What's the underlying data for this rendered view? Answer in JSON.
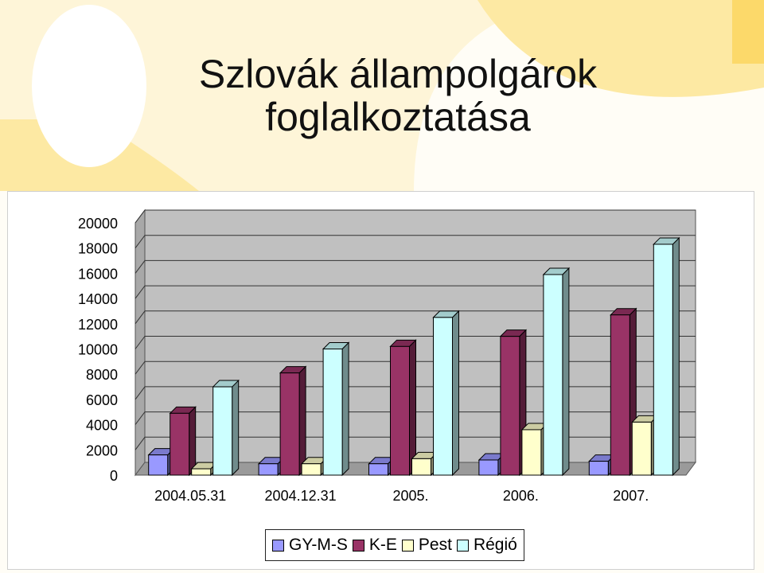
{
  "slide": {
    "title_line1": "Szlovák  állampolgárok",
    "title_line2": "foglalkoztatása",
    "colors": {
      "accent_yellow": "#fde9a3",
      "background": "#ffffff"
    }
  },
  "chart_data": {
    "type": "bar",
    "style": "3d-clustered-column",
    "title": "",
    "xlabel": "",
    "ylabel": "",
    "ylim": [
      0,
      20000
    ],
    "yticks": [
      "20000",
      "18000",
      "16000",
      "14000",
      "12000",
      "10000",
      "8000",
      "6000",
      "4000",
      "2000",
      "0"
    ],
    "categories": [
      "2004.05.31",
      "2004.12.31",
      "2005.",
      "2006.",
      "2007."
    ],
    "series": [
      {
        "name": "GY-M-S",
        "color": "#9999ff",
        "values": [
          1600,
          900,
          900,
          1200,
          1100
        ]
      },
      {
        "name": "K-E",
        "color": "#993366",
        "values": [
          4900,
          8100,
          10200,
          11000,
          12700
        ]
      },
      {
        "name": "Pest",
        "color": "#ffffcc",
        "values": [
          500,
          900,
          1300,
          3600,
          4200
        ]
      },
      {
        "name": "Régió",
        "color": "#ccffff",
        "values": [
          7000,
          10000,
          12500,
          15900,
          18300
        ]
      }
    ],
    "grid": true,
    "legend_position": "bottom"
  }
}
